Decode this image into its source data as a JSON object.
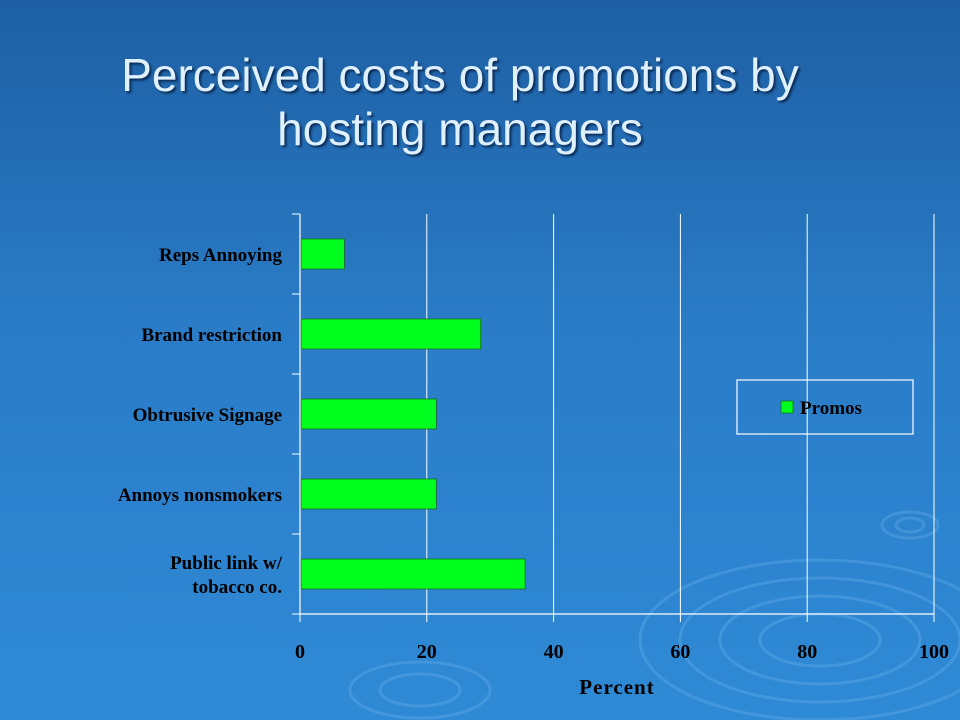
{
  "slide": {
    "title_line1": "Perceived costs of promotions by",
    "title_line2": "hosting managers"
  },
  "colors": {
    "bar": "#00ff1e",
    "bar_stroke": "#1a6e1a",
    "title": "#dff0ff"
  },
  "chart_data": {
    "type": "bar",
    "orientation": "horizontal",
    "categories": [
      "Reps Annoying",
      "Brand restriction",
      "Obtrusive Signage",
      "Annoys nonsmokers",
      "Public link w/ tobacco co."
    ],
    "category_lines": [
      [
        "Reps Annoying"
      ],
      [
        "Brand restriction"
      ],
      [
        "Obtrusive Signage"
      ],
      [
        "Annoys nonsmokers"
      ],
      [
        "Public link w/",
        "tobacco co."
      ]
    ],
    "series": [
      {
        "name": "Promos",
        "values": [
          7,
          28.5,
          21.5,
          21.5,
          35.5
        ]
      }
    ],
    "xlabel": "Percent",
    "ylabel": "",
    "xlim": [
      0,
      100
    ],
    "xticks": [
      0,
      20,
      40,
      60,
      80,
      100
    ],
    "grid": "vertical",
    "legend": "right"
  }
}
